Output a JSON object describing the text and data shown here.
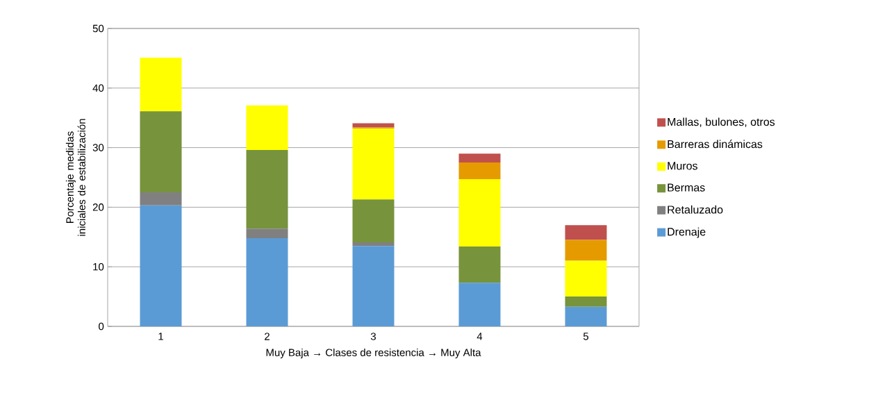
{
  "chart_data": {
    "type": "bar",
    "stacked": true,
    "xlabel": "Muy Baja → Clases de resistencia → Muy Alta",
    "ylabel": "Porcentaje medidas iniciales de estabilización",
    "categories": [
      "1",
      "2",
      "3",
      "4",
      "5"
    ],
    "series": [
      {
        "name": "Drenaje",
        "color": "#5b9bd5",
        "values": [
          20.3,
          14.8,
          13.5,
          7.3,
          3.3
        ]
      },
      {
        "name": "Retaluzado",
        "color": "#808080",
        "values": [
          2.2,
          1.6,
          0.6,
          0,
          0
        ]
      },
      {
        "name": "Bermas",
        "color": "#77933c",
        "values": [
          13.6,
          13.2,
          7.2,
          6.1,
          1.7
        ]
      },
      {
        "name": "Muros",
        "color": "#ffff00",
        "values": [
          9.0,
          7.5,
          11.9,
          11.3,
          6.0
        ]
      },
      {
        "name": "Barreras dinámicas",
        "color": "#e59b00",
        "values": [
          0,
          0,
          0.2,
          2.8,
          3.5
        ]
      },
      {
        "name": "Mallas, bulones, otros",
        "color": "#c0504d",
        "values": [
          0,
          0,
          0.7,
          1.5,
          2.5
        ]
      }
    ],
    "ylim": [
      0,
      50
    ],
    "yticks": [
      0,
      10,
      20,
      30,
      40,
      50
    ],
    "grid": "y",
    "legend": "right"
  }
}
